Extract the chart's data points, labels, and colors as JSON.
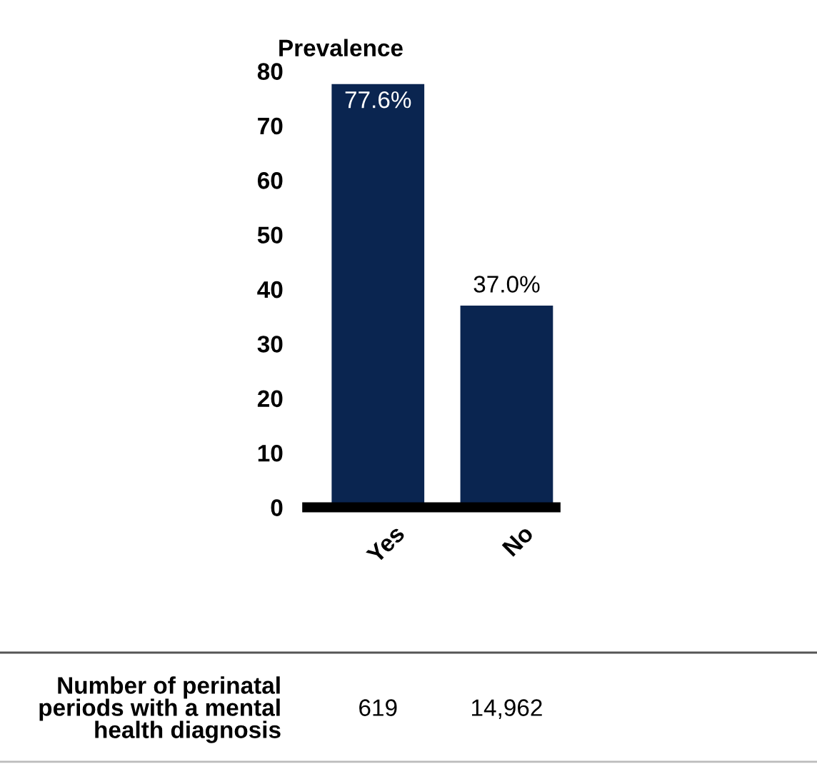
{
  "chart_data": {
    "type": "bar",
    "ylabel": "Prevalence",
    "categories": [
      "Yes",
      "No"
    ],
    "values": [
      77.6,
      37.0
    ],
    "color": "#0a2550",
    "value_labels": [
      "77.6%",
      "37.0%"
    ],
    "ylim": [
      0,
      80
    ],
    "yticks": [
      0,
      10,
      20,
      30,
      40,
      50,
      60,
      70,
      80
    ],
    "grid": false,
    "annotations": [
      "Number of perinatal\nperiods with a mental\nhealth diagnosis",
      "619",
      "14,962"
    ]
  }
}
